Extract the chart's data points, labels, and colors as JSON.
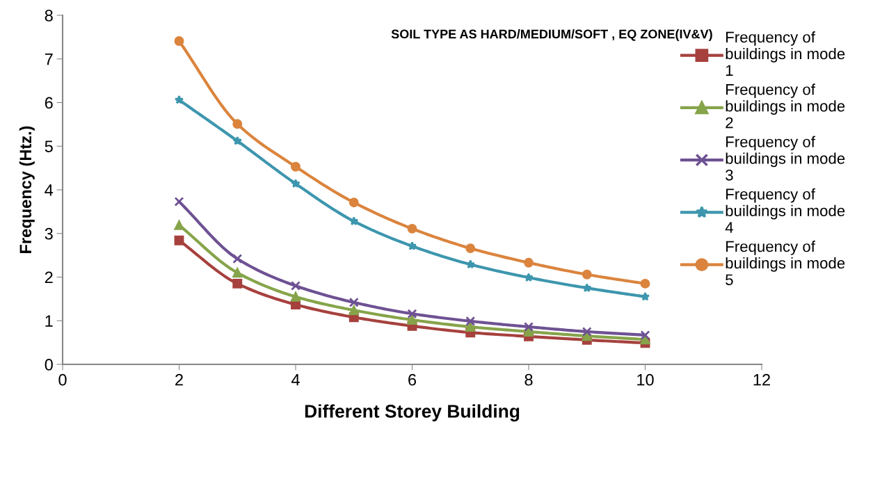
{
  "chart_data": {
    "type": "line",
    "title": "SOIL TYPE AS HARD/MEDIUM/SOFT , EQ ZONE(IV&V)",
    "xlabel": "Different Storey Building",
    "ylabel": "Frequency (Htz.)",
    "x": [
      2,
      3,
      4,
      5,
      6,
      7,
      8,
      9,
      10
    ],
    "series": [
      {
        "name": "Frequency of buildings in mode 1",
        "color": "#a6413e",
        "marker": "square",
        "values": [
          2.84,
          1.85,
          1.37,
          1.08,
          0.88,
          0.73,
          0.64,
          0.56,
          0.49
        ]
      },
      {
        "name": "Frequency of buildings in mode 2",
        "color": "#86a44a",
        "marker": "triangle",
        "values": [
          3.19,
          2.1,
          1.55,
          1.24,
          1.02,
          0.86,
          0.75,
          0.65,
          0.57
        ]
      },
      {
        "name": "Frequency of buildings in mode 3",
        "color": "#6e5193",
        "marker": "cross",
        "values": [
          3.73,
          2.42,
          1.8,
          1.42,
          1.16,
          0.99,
          0.86,
          0.75,
          0.67
        ]
      },
      {
        "name": "Frequency of buildings in mode 4",
        "color": "#3d96ae",
        "marker": "star",
        "values": [
          6.06,
          5.12,
          4.14,
          3.28,
          2.71,
          2.29,
          1.99,
          1.75,
          1.55
        ]
      },
      {
        "name": "Frequency of buildings in mode 5",
        "color": "#db843d",
        "marker": "circle",
        "values": [
          7.41,
          5.51,
          4.53,
          3.71,
          3.11,
          2.66,
          2.33,
          2.06,
          1.85
        ]
      }
    ],
    "xlim": [
      0,
      12
    ],
    "xticks": [
      0,
      2,
      4,
      6,
      8,
      10,
      12
    ],
    "ylim": [
      0,
      8
    ],
    "yticks": [
      0,
      1,
      2,
      3,
      4,
      5,
      6,
      7,
      8
    ],
    "grid": false,
    "legend": "right",
    "line_style": "solid"
  }
}
